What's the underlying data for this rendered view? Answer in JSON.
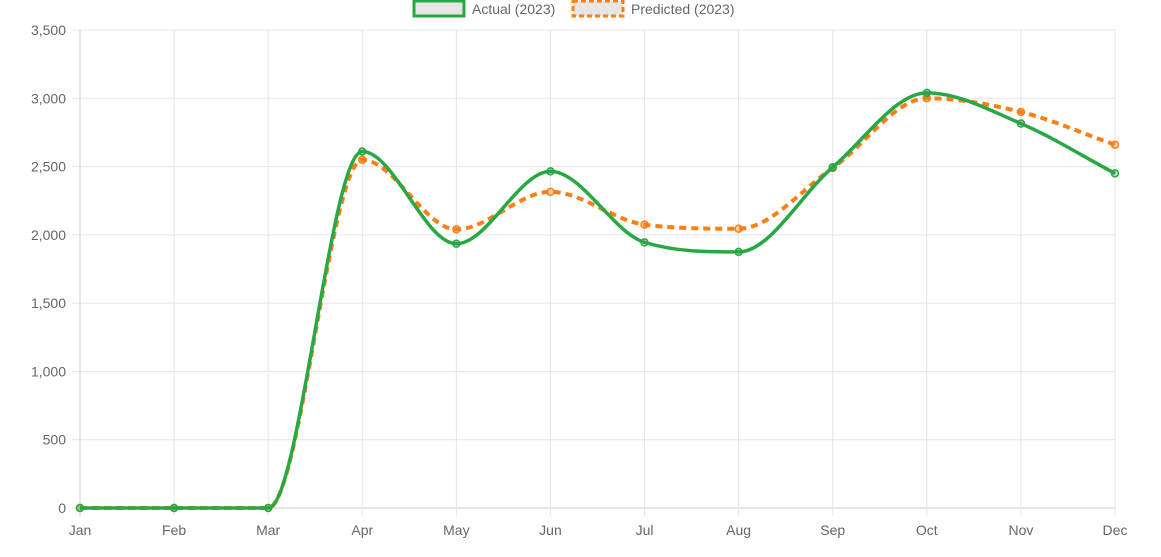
{
  "chart_data": {
    "type": "line",
    "categories": [
      "Jan",
      "Feb",
      "Mar",
      "Apr",
      "May",
      "Jun",
      "Jul",
      "Aug",
      "Sep",
      "Oct",
      "Nov",
      "Dec"
    ],
    "y_ticks": [
      "0",
      "500",
      "1,000",
      "1,500",
      "2,000",
      "2,500",
      "3,000",
      "3,500"
    ],
    "ylim": [
      0,
      3500
    ],
    "grid": true,
    "legend_position": "top-center",
    "series": [
      {
        "name": "Actual (2023)",
        "color": "#28a745",
        "style": "solid",
        "values": [
          0,
          0,
          0,
          2610,
          1935,
          2465,
          1945,
          1875,
          2495,
          3040,
          2815,
          2450
        ]
      },
      {
        "name": "Predicted (2023)",
        "color": "#fd7e14",
        "style": "dashed",
        "values": [
          0,
          0,
          0,
          2550,
          2040,
          2315,
          2075,
          2045,
          2490,
          3000,
          2900,
          2660
        ]
      }
    ]
  }
}
